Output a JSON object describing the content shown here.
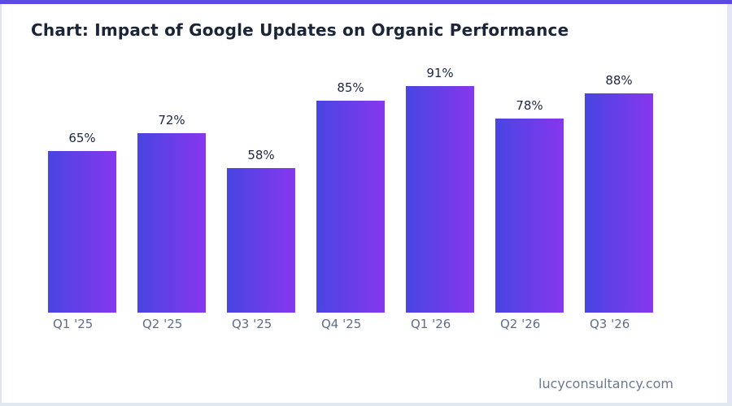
{
  "page": {
    "title": "Chart: Impact of Google Updates on Organic Performance",
    "footer": "lucyconsultancy.com"
  },
  "colors": {
    "accent_bar": "#5b4be2",
    "background": "#ffffff",
    "bar_gradient_start": "#4845e2",
    "bar_gradient_end": "#8737ee",
    "title_text": "#1b2538",
    "value_label_text": "#1b2742",
    "axis_label_text": "#5f6e87",
    "footer_text": "#6b7a90",
    "border_left": "#dee4ef",
    "border_right": "#e2e5f6",
    "border_bottom": "#e2e8f0"
  },
  "chart_data": {
    "type": "bar",
    "title": "Chart: Impact of Google Updates on Organic Performance",
    "categories": [
      "Q1 '25",
      "Q2 '25",
      "Q3 '25",
      "Q4 '25",
      "Q1 '26",
      "Q2 '26",
      "Q3 '26"
    ],
    "values": [
      65,
      72,
      58,
      85,
      91,
      78,
      88
    ],
    "value_labels": [
      "65%",
      "72%",
      "58%",
      "85%",
      "91%",
      "78%",
      "88%"
    ],
    "unit": "%",
    "xlabel": "",
    "ylabel": "",
    "ylim": [
      0,
      100
    ],
    "grid": false,
    "legend": false,
    "bar_gradient": [
      "#4845e2",
      "#8737ee"
    ]
  }
}
